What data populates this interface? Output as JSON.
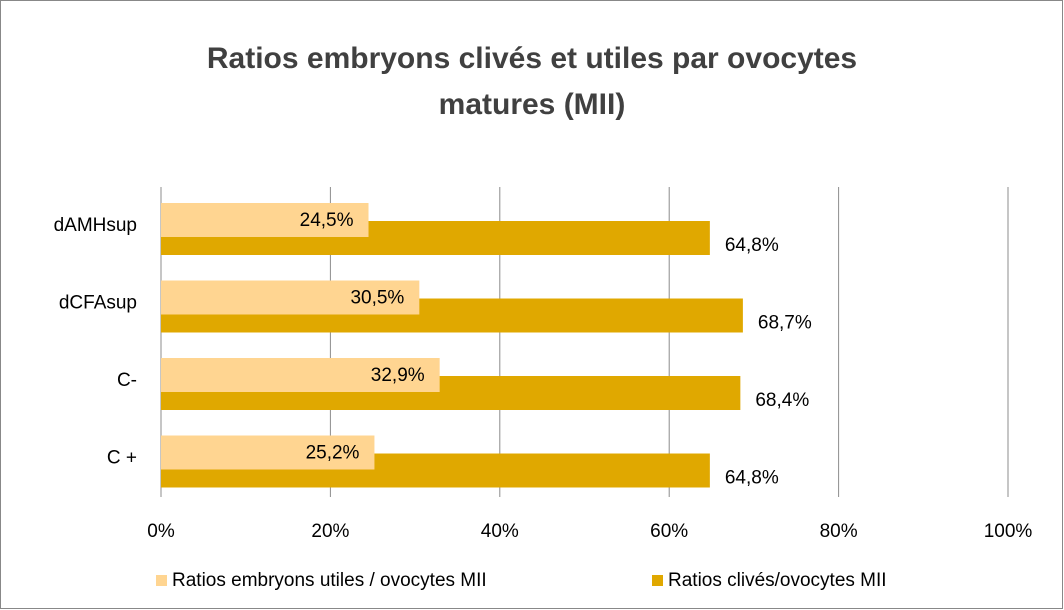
{
  "chart_data": {
    "type": "barh",
    "title": "Ratios embryons clivés et utiles par ovocytes matures (MII)",
    "categories": [
      "dAMHsup",
      "dCFAsup",
      "C-",
      "C +"
    ],
    "series": [
      {
        "name": "Ratios embryons utiles / ovocytes MII",
        "color": "#ffd591",
        "values": [
          24.5,
          30.5,
          32.9,
          25.2
        ],
        "value_labels": [
          "24,5%",
          "30,5%",
          "32,9%",
          "25,2%"
        ]
      },
      {
        "name": "Ratios clivés/ovocytes MII",
        "color": "#e0a800",
        "values": [
          64.8,
          68.7,
          68.4,
          64.8
        ],
        "value_labels": [
          "64,8%",
          "68,7%",
          "68,4%",
          "64,8%"
        ]
      }
    ],
    "xlim": [
      0,
      100
    ],
    "xticks": [
      {
        "value": 0,
        "label": "0%"
      },
      {
        "value": 20,
        "label": "20%"
      },
      {
        "value": 40,
        "label": "40%"
      },
      {
        "value": 60,
        "label": "60%"
      },
      {
        "value": 80,
        "label": "80%"
      },
      {
        "value": 100,
        "label": "100%"
      }
    ],
    "grid": true,
    "legend": "bottom"
  }
}
